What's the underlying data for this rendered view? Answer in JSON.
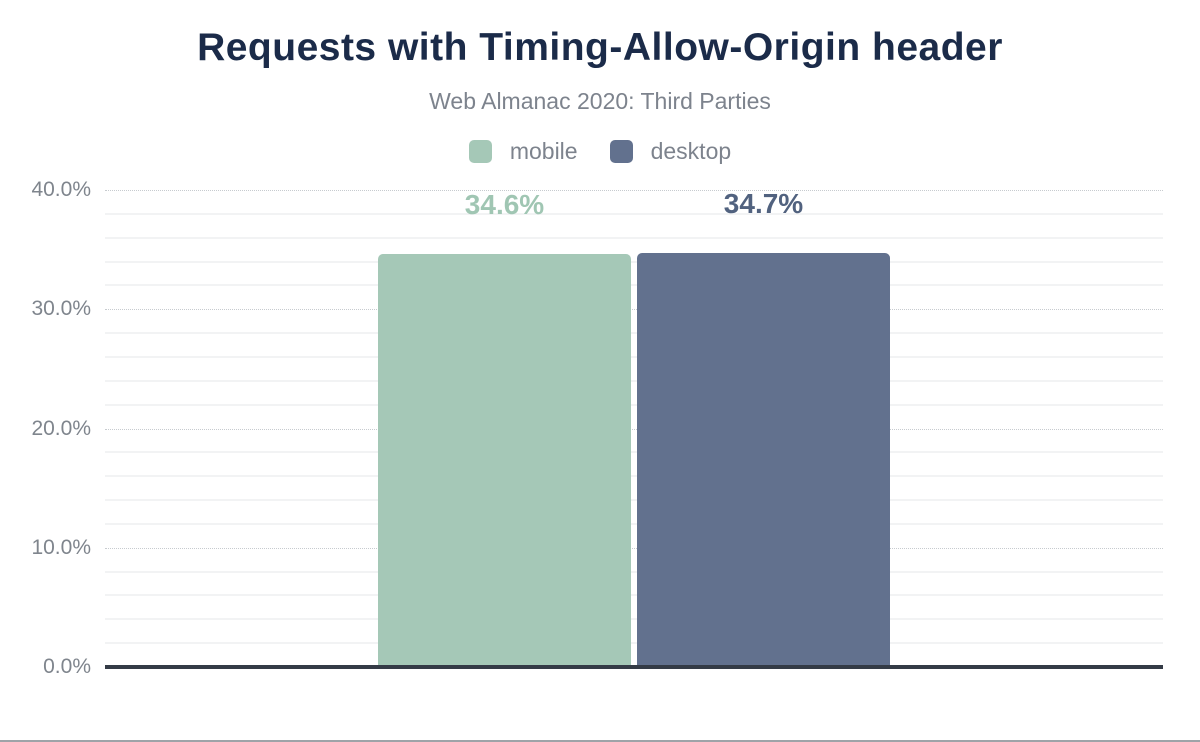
{
  "chart_data": {
    "type": "bar",
    "title": "Requests with Timing-Allow-Origin header",
    "subtitle": "Web Almanac 2020: Third Parties",
    "categories": [
      "mobile",
      "desktop"
    ],
    "series": [
      {
        "name": "mobile",
        "value": 34.6,
        "data_label": "34.6%",
        "color": "#a5c8b7",
        "label_color": "#a0c6b3"
      },
      {
        "name": "desktop",
        "value": 34.7,
        "data_label": "34.7%",
        "color": "#62718e",
        "label_color": "#51627f"
      }
    ],
    "xlabel": "",
    "ylabel": "",
    "ylim": [
      0,
      40
    ],
    "y_major_tick_step": 10,
    "y_minor_tick_step": 2,
    "y_tick_labels": [
      "40.0%",
      "30.0%",
      "20.0%",
      "10.0%",
      "0.0%"
    ],
    "grid": "major gridlines dotted, minor gridlines solid light",
    "legend_position": "top center"
  },
  "colors": {
    "title": "#1b2b49",
    "subtitle": "#7d838d",
    "tick_label": "#7f858d",
    "axis_line": "#343b46",
    "major_gridline": "#c7cbcf",
    "minor_gridline": "#f2f3f4",
    "bottom_border": "#9ea3a8"
  }
}
